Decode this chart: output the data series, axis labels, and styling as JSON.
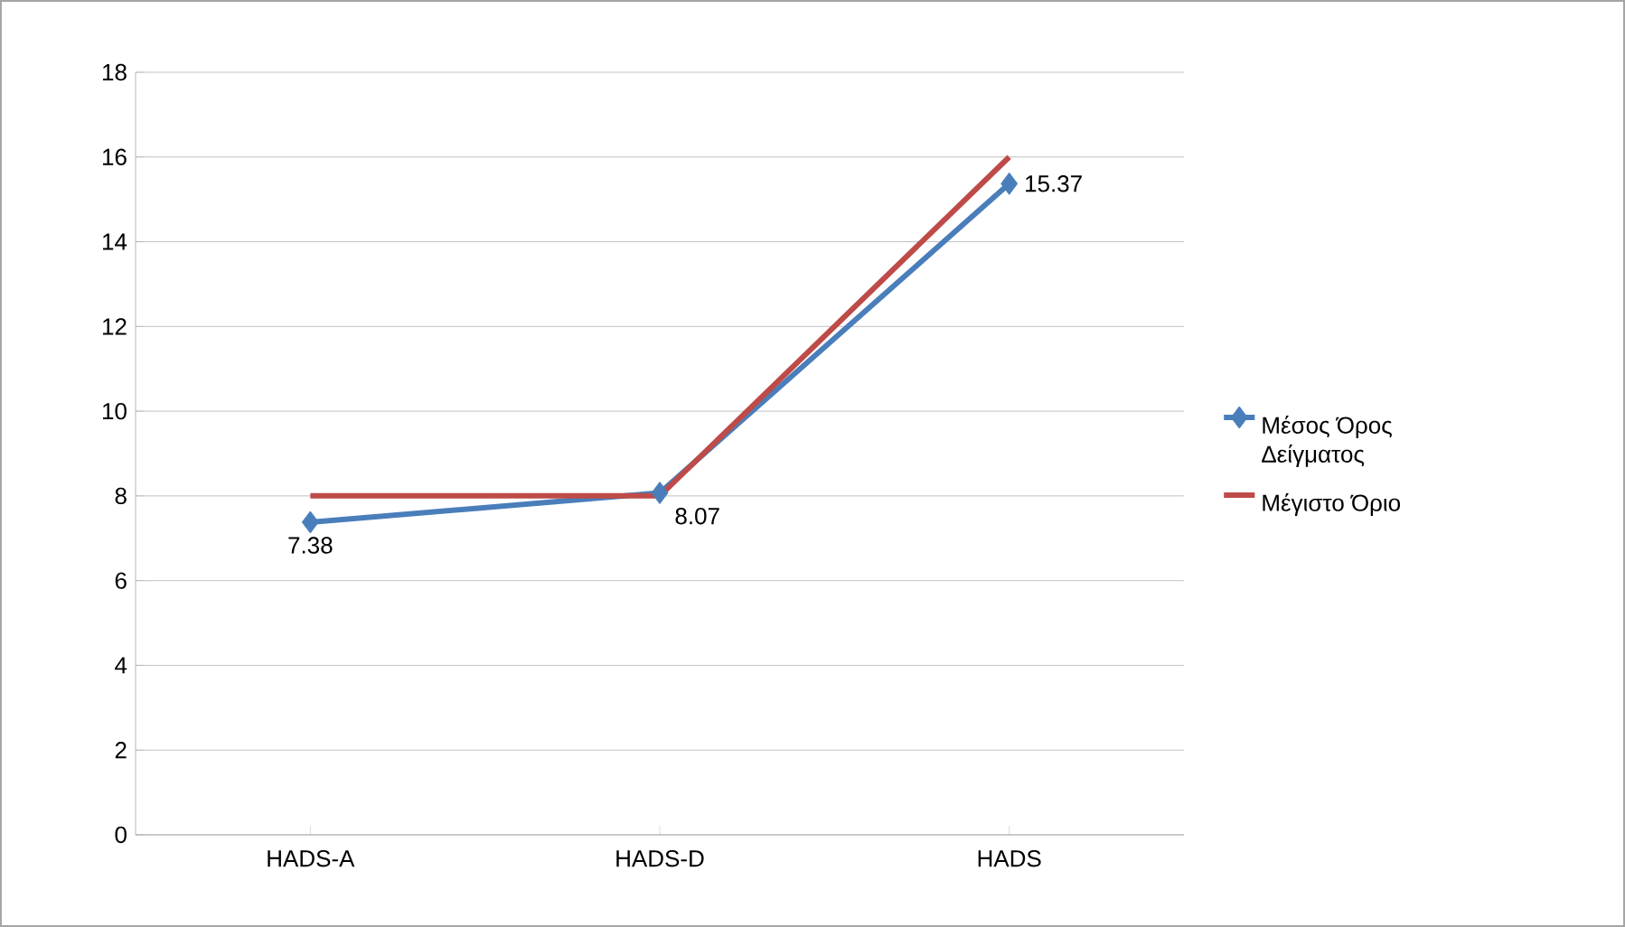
{
  "chart_data": {
    "type": "line",
    "categories": [
      "HADS-A",
      "HADS-D",
      "HADS"
    ],
    "series": [
      {
        "name": "Μέσος Όρος Δείγματος",
        "color": "#4a7ebb",
        "values": [
          7.38,
          8.07,
          15.37
        ],
        "marker": "diamond",
        "value_labels": [
          "7.38",
          "8.07",
          "15.37"
        ]
      },
      {
        "name": "Μέγιστο Όριο",
        "color": "#be4b48",
        "values": [
          8,
          8,
          16
        ],
        "marker": "none"
      }
    ],
    "ylim": [
      0,
      18
    ],
    "yticks": [
      0,
      2,
      4,
      6,
      8,
      10,
      12,
      14,
      16,
      18
    ],
    "grid": "y",
    "legend": "right"
  }
}
